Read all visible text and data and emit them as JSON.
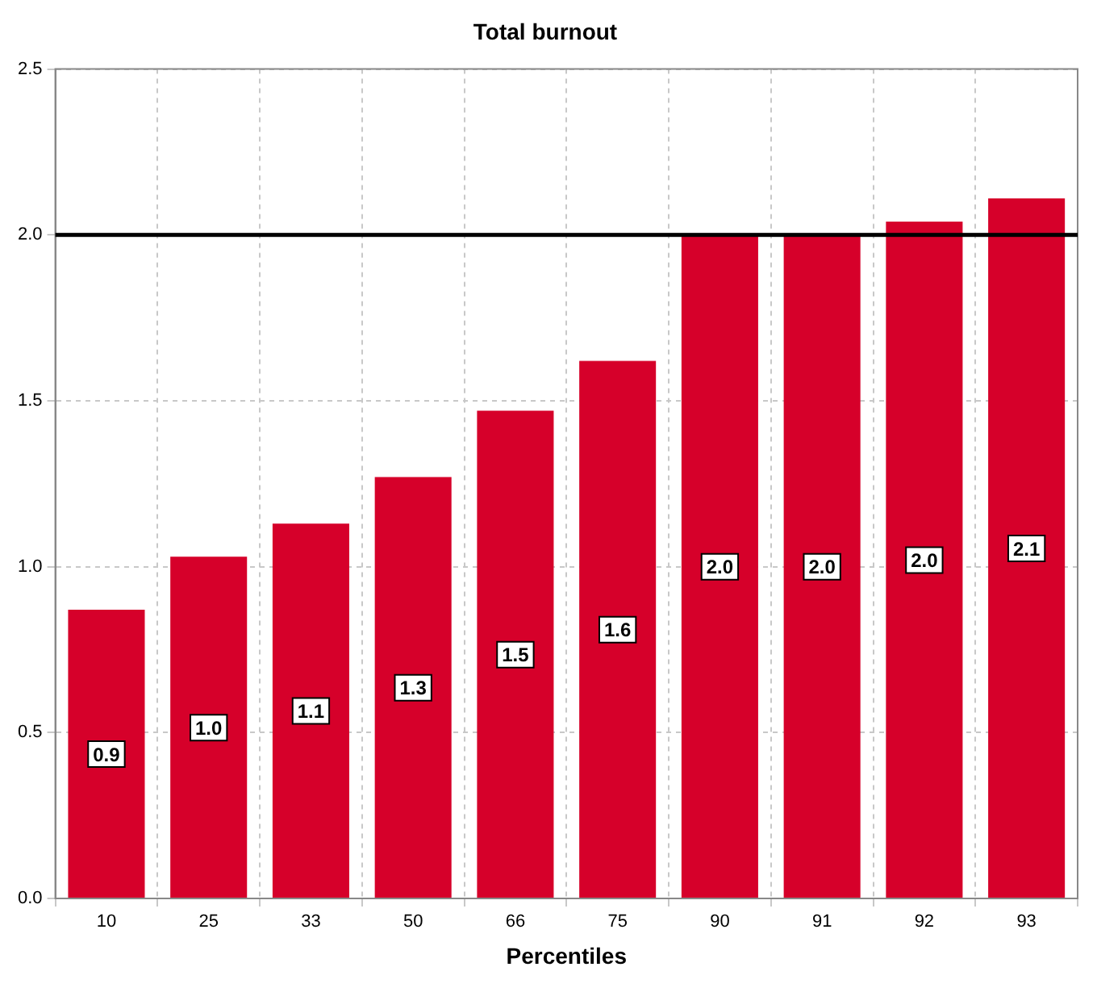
{
  "chart_data": {
    "type": "bar",
    "title": "Total burnout",
    "xlabel": "Percentiles",
    "categories": [
      "10",
      "25",
      "33",
      "50",
      "66",
      "75",
      "90",
      "91",
      "92",
      "93"
    ],
    "values": [
      0.87,
      1.03,
      1.13,
      1.27,
      1.47,
      1.62,
      2.0,
      2.0,
      2.04,
      2.11
    ],
    "value_labels": [
      "0.9",
      "1.0",
      "1.1",
      "1.3",
      "1.5",
      "1.6",
      "2.0",
      "2.0",
      "2.0",
      "2.1"
    ],
    "color": "#d6002a",
    "ylim": [
      0,
      2.5
    ],
    "yticks": [
      {
        "value": 0,
        "label": "0.0"
      },
      {
        "value": 0.5,
        "label": "0.5"
      },
      {
        "value": 1,
        "label": "1.0"
      },
      {
        "value": 1.5,
        "label": "1.5"
      },
      {
        "value": 2,
        "label": "2.0"
      },
      {
        "value": 2.5,
        "label": "2.5"
      }
    ],
    "grid": true,
    "ref_lines": [
      {
        "axis": "y",
        "value": 2.0,
        "color": "#000000"
      }
    ]
  }
}
